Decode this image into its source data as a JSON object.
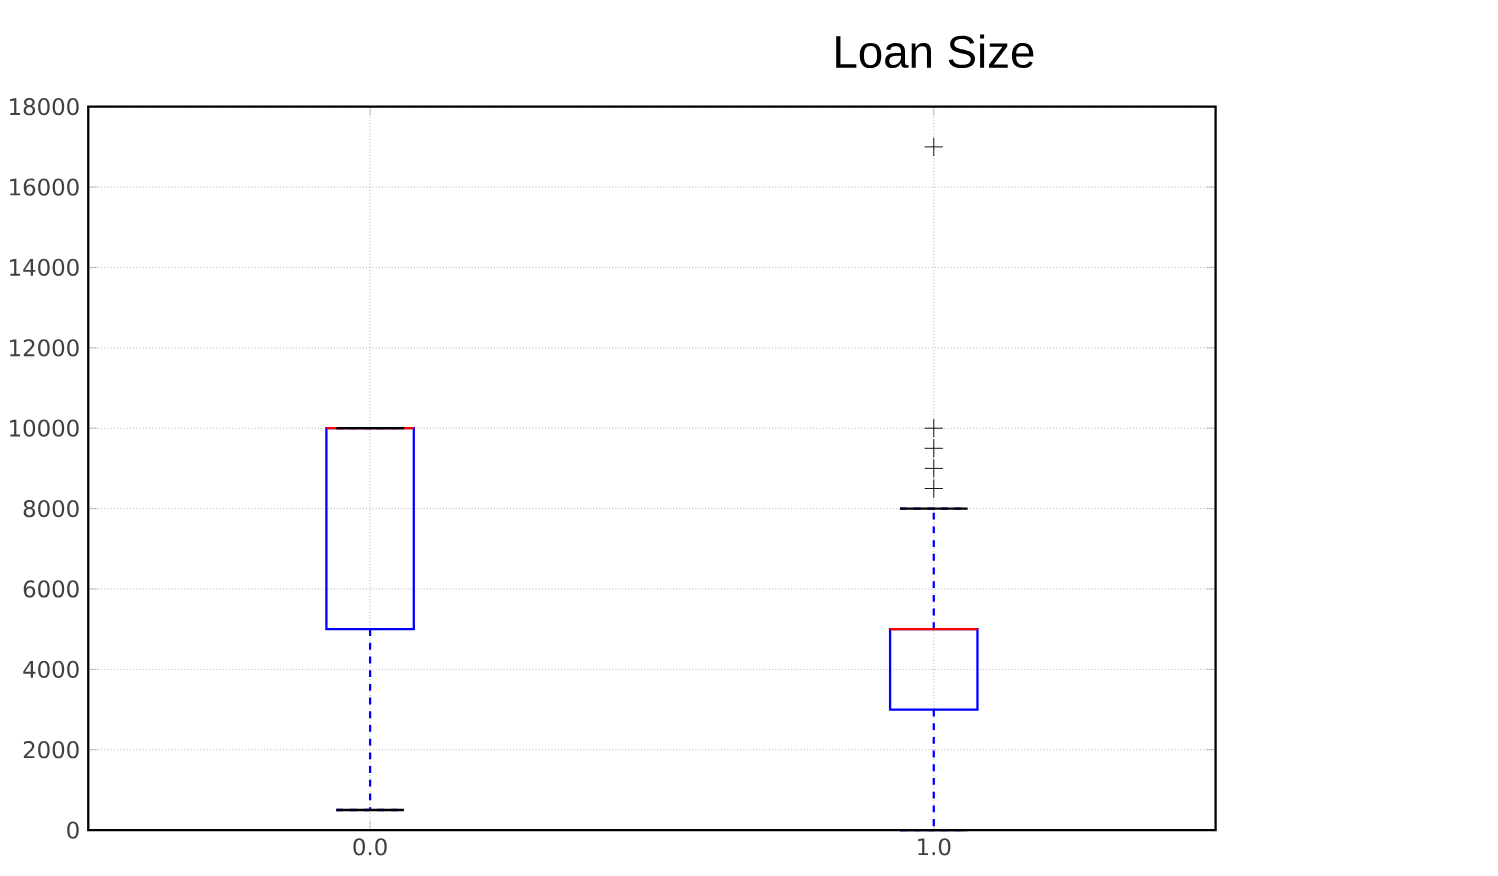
{
  "chart_data": {
    "type": "box",
    "title": "Loan Size",
    "categories": [
      "0.0",
      "1.0"
    ],
    "color": "#0000ff",
    "boxes": [
      {
        "low": 500,
        "q1": 5000,
        "median": 10000,
        "q3": 10000,
        "high": 10000
      },
      {
        "low": 0,
        "q1": 3000,
        "median": 5000,
        "q3": 5000,
        "high": 8000,
        "outliers": [
          8500,
          9000,
          9500,
          10000,
          17000
        ]
      }
    ],
    "ylim": [
      0,
      18000
    ],
    "yticks": [
      0,
      2000,
      4000,
      6000,
      8000,
      10000,
      12000,
      14000,
      16000,
      18000
    ],
    "grid": true,
    "marker": "cross"
  }
}
